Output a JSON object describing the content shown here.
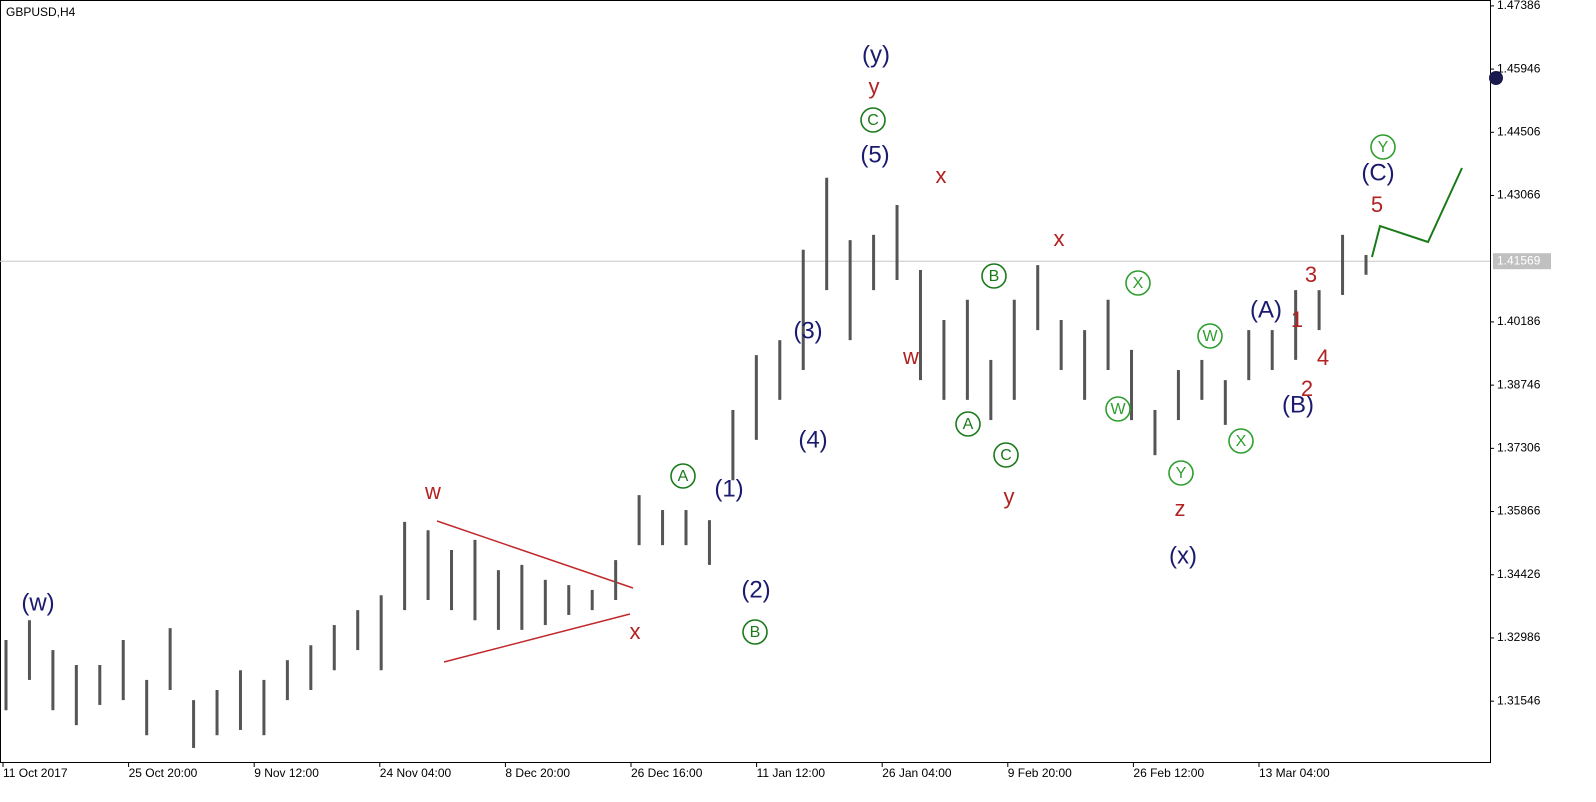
{
  "chart_data": {
    "type": "ohlc",
    "title": "GBPUSD,H4",
    "color": "#555555",
    "highs": [
      1.3294,
      1.3339,
      1.3271,
      1.3237,
      1.3237,
      1.3294,
      1.3203,
      1.3321,
      1.3157,
      1.318,
      1.3225,
      1.3203,
      1.3248,
      1.3282,
      1.3328,
      1.3362,
      1.3396,
      1.3563,
      1.3544,
      1.3499,
      1.3522,
      1.3453,
      1.3465,
      1.3431,
      1.3419,
      1.3408,
      1.3476,
      1.3624,
      1.359,
      1.359,
      1.3567,
      1.3818,
      1.3943,
      1.3977,
      1.4183,
      1.4347,
      1.4205,
      1.4217,
      1.4285,
      1.4137,
      1.4023,
      1.4069,
      1.3932,
      1.4069,
      1.4148,
      1.4023,
      1.4,
      1.4069,
      1.3955,
      1.3818,
      1.3909,
      1.3932,
      1.3886,
      1.4,
      1.4,
      1.4091,
      1.4091,
      1.4217,
      1.4171
    ],
    "lows": [
      1.3134,
      1.3203,
      1.3134,
      1.31,
      1.3146,
      1.3157,
      1.3077,
      1.318,
      1.3048,
      1.3077,
      1.3089,
      1.3077,
      1.3157,
      1.318,
      1.3225,
      1.3271,
      1.3225,
      1.3362,
      1.3385,
      1.3362,
      1.3339,
      1.3317,
      1.3317,
      1.3328,
      1.3351,
      1.3362,
      1.3385,
      1.351,
      1.351,
      1.351,
      1.3465,
      1.3658,
      1.375,
      1.3841,
      1.3909,
      1.4091,
      1.3977,
      1.4091,
      1.4114,
      1.3886,
      1.3841,
      1.3841,
      1.3795,
      1.3841,
      1.4,
      1.3909,
      1.3841,
      1.3909,
      1.3795,
      1.3715,
      1.3795,
      1.3841,
      1.3784,
      1.3886,
      1.3909,
      1.3932,
      1.4,
      1.408,
      1.4126
    ],
    "ylim": [
      1.3016,
      1.4752
    ],
    "yticks": [
      1.47386,
      1.45946,
      1.44506,
      1.43066,
      1.40186,
      1.38746,
      1.37306,
      1.35866,
      1.34426,
      1.32986,
      1.31546
    ],
    "xticks": [
      "11 Oct 2017",
      "25 Oct 20:00",
      "9 Nov 12:00",
      "24 Nov 04:00",
      "8 Dec 20:00",
      "26 Dec 16:00",
      "11 Jan 12:00",
      "26 Jan 04:00",
      "9 Feb 20:00",
      "26 Feb 12:00",
      "13 Mar 04:00"
    ],
    "price_line": 1.41569,
    "annotations": [
      {
        "text": "(w)",
        "color": "#1a1a6e"
      },
      {
        "text": "w",
        "color": "#b22222"
      },
      {
        "text": "x",
        "color": "#b22222"
      },
      {
        "text": "A",
        "color": "#1a7a1a",
        "circled": true
      },
      {
        "text": "(1)",
        "color": "#1a1a6e"
      },
      {
        "text": "(2)",
        "color": "#1a1a6e"
      },
      {
        "text": "B",
        "color": "#1a7a1a",
        "circled": true
      },
      {
        "text": "(3)",
        "color": "#1a1a6e"
      },
      {
        "text": "(4)",
        "color": "#1a1a6e"
      },
      {
        "text": "(y)",
        "color": "#1a1a6e"
      },
      {
        "text": "y",
        "color": "#b22222"
      },
      {
        "text": "C",
        "color": "#1a7a1a",
        "circled": true
      },
      {
        "text": "(5)",
        "color": "#1a1a6e"
      },
      {
        "text": "x",
        "color": "#b22222"
      },
      {
        "text": "w",
        "color": "#b22222"
      },
      {
        "text": "B",
        "color": "#1a7a1a",
        "circled": true
      },
      {
        "text": "A",
        "color": "#1a7a1a",
        "circled": true
      },
      {
        "text": "C",
        "color": "#1a7a1a",
        "circled": true
      },
      {
        "text": "y",
        "color": "#b22222"
      },
      {
        "text": "x",
        "color": "#b22222"
      },
      {
        "text": "X",
        "color": "#2e9e2e",
        "circled": true
      },
      {
        "text": "W",
        "color": "#2e9e2e",
        "circled": true
      },
      {
        "text": "Y",
        "color": "#2e9e2e",
        "circled": true
      },
      {
        "text": "z",
        "color": "#b22222"
      },
      {
        "text": "(x)",
        "color": "#1a1a6e"
      },
      {
        "text": "W",
        "color": "#2e9e2e",
        "circled": true
      },
      {
        "text": "X",
        "color": "#2e9e2e",
        "circled": true
      },
      {
        "text": "(A)",
        "color": "#1a1a6e"
      },
      {
        "text": "(B)",
        "color": "#1a1a6e"
      },
      {
        "text": "1",
        "color": "#b22222"
      },
      {
        "text": "2",
        "color": "#b22222"
      },
      {
        "text": "3",
        "color": "#b22222"
      },
      {
        "text": "4",
        "color": "#b22222"
      },
      {
        "text": "5",
        "color": "#b22222"
      },
      {
        "text": "(C)",
        "color": "#1a1a6e"
      },
      {
        "text": "Y",
        "color": "#2e9e2e",
        "circled": true
      }
    ]
  }
}
